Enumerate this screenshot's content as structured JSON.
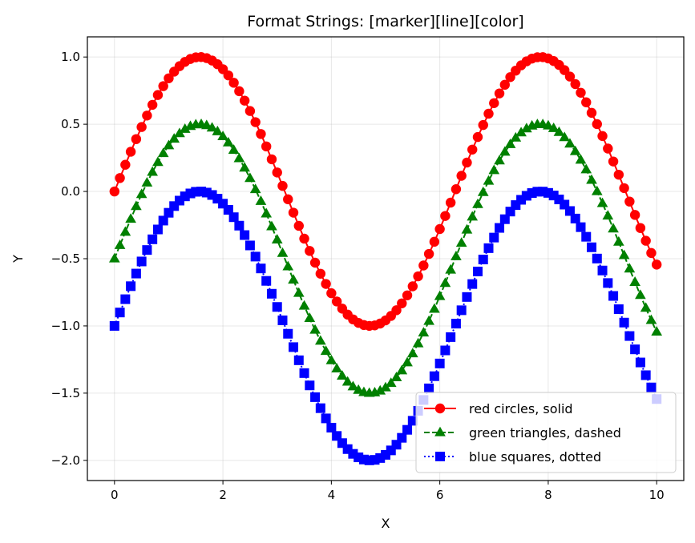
{
  "chart_data": {
    "type": "line",
    "title": "Format Strings: [marker][line][color]",
    "xlabel": "X",
    "ylabel": "Y",
    "xlim": [
      -0.5,
      10.5
    ],
    "ylim": [
      -2.15,
      1.15
    ],
    "xticks": [
      0,
      2,
      4,
      6,
      8,
      10
    ],
    "xtick_labels": [
      "0",
      "2",
      "4",
      "6",
      "8",
      "10"
    ],
    "yticks": [
      -2.0,
      -1.5,
      -1.0,
      -0.5,
      0.0,
      0.5,
      1.0
    ],
    "ytick_labels": [
      "−2.0",
      "−1.5",
      "−1.0",
      "−0.5",
      "0.0",
      "0.5",
      "1.0"
    ],
    "grid": true,
    "legend_position": "lower-right",
    "x": [
      0.0,
      0.1,
      0.2,
      0.3,
      0.4,
      0.5,
      0.6,
      0.7,
      0.8,
      0.9,
      1.0,
      1.1,
      1.2,
      1.3,
      1.4,
      1.5,
      1.6,
      1.7,
      1.8,
      1.9,
      2.0,
      2.1,
      2.2,
      2.3,
      2.4,
      2.5,
      2.6,
      2.7,
      2.8,
      2.9,
      3.0,
      3.1,
      3.2,
      3.3,
      3.4,
      3.5,
      3.6,
      3.7,
      3.8,
      3.9,
      4.0,
      4.1,
      4.2,
      4.3,
      4.4,
      4.5,
      4.6,
      4.7,
      4.8,
      4.9,
      5.0,
      5.1,
      5.2,
      5.3,
      5.4,
      5.5,
      5.6,
      5.7,
      5.8,
      5.9,
      6.0,
      6.1,
      6.2,
      6.3,
      6.4,
      6.5,
      6.6,
      6.7,
      6.8,
      6.9,
      7.0,
      7.1,
      7.2,
      7.3,
      7.4,
      7.5,
      7.6,
      7.7,
      7.8,
      7.9,
      8.0,
      8.1,
      8.2,
      8.3,
      8.4,
      8.5,
      8.6,
      8.7,
      8.8,
      8.9,
      9.0,
      9.1,
      9.2,
      9.3,
      9.4,
      9.5,
      9.6,
      9.7,
      9.8,
      9.9,
      10.0
    ],
    "series": [
      {
        "name": "red circles, solid",
        "color": "#ff0000",
        "marker": "circle",
        "linestyle": "solid",
        "values": [
          0.0,
          0.0998,
          0.1987,
          0.2955,
          0.3894,
          0.4794,
          0.5646,
          0.6442,
          0.7174,
          0.7833,
          0.8415,
          0.8912,
          0.932,
          0.9636,
          0.9854,
          0.9975,
          0.9996,
          0.9917,
          0.9738,
          0.9463,
          0.9093,
          0.8632,
          0.8085,
          0.7457,
          0.6755,
          0.5985,
          0.5155,
          0.4274,
          0.335,
          0.2392,
          0.1411,
          0.0416,
          -0.0584,
          -0.1577,
          -0.2555,
          -0.3508,
          -0.4425,
          -0.5298,
          -0.6119,
          -0.6878,
          -0.7568,
          -0.8183,
          -0.8716,
          -0.9162,
          -0.9516,
          -0.9775,
          -0.9937,
          -0.9999,
          -0.9962,
          -0.9825,
          -0.9589,
          -0.9258,
          -0.8835,
          -0.8323,
          -0.7728,
          -0.7055,
          -0.6313,
          -0.5507,
          -0.4646,
          -0.3739,
          -0.2794,
          -0.1822,
          -0.0831,
          0.0168,
          0.1165,
          0.2151,
          0.3115,
          0.4048,
          0.494,
          0.5784,
          0.657,
          0.729,
          0.7937,
          0.8504,
          0.8987,
          0.938,
          0.9679,
          0.9882,
          0.9985,
          0.9989,
          0.9894,
          0.9699,
          0.9407,
          0.9022,
          0.8546,
          0.7985,
          0.7344,
          0.663,
          0.5849,
          0.501,
          0.4121,
          0.319,
          0.2229,
          0.1245,
          0.0248,
          -0.0752,
          -0.1743,
          -0.2718,
          -0.3665,
          -0.4575,
          -0.544
        ]
      },
      {
        "name": "green triangles, dashed",
        "color": "#008000",
        "marker": "triangle",
        "linestyle": "dashed",
        "values": [
          -0.5,
          -0.4002,
          -0.3013,
          -0.2045,
          -0.1106,
          -0.0206,
          0.0646,
          0.1442,
          0.2174,
          0.2833,
          0.3415,
          0.3912,
          0.432,
          0.4636,
          0.4854,
          0.4975,
          0.4996,
          0.4917,
          0.4738,
          0.4463,
          0.4093,
          0.3632,
          0.3085,
          0.2457,
          0.1755,
          0.0985,
          0.0155,
          -0.0726,
          -0.165,
          -0.2608,
          -0.3589,
          -0.4584,
          -0.5584,
          -0.6577,
          -0.7555,
          -0.8508,
          -0.9425,
          -1.0298,
          -1.1119,
          -1.1878,
          -1.2568,
          -1.3183,
          -1.3716,
          -1.4162,
          -1.4516,
          -1.4775,
          -1.4937,
          -1.4999,
          -1.4962,
          -1.4825,
          -1.4589,
          -1.4258,
          -1.3835,
          -1.3323,
          -1.2728,
          -1.2055,
          -1.1313,
          -1.0507,
          -0.9646,
          -0.8739,
          -0.7794,
          -0.6822,
          -0.5831,
          -0.4832,
          -0.3835,
          -0.2849,
          -0.1885,
          -0.0952,
          -0.006,
          0.0784,
          0.157,
          0.229,
          0.2937,
          0.3504,
          0.3987,
          0.438,
          0.4679,
          0.4882,
          0.4985,
          0.4989,
          0.4894,
          0.4699,
          0.4407,
          0.4022,
          0.3546,
          0.2985,
          0.2344,
          0.163,
          0.0849,
          0.001,
          -0.0879,
          -0.181,
          -0.2771,
          -0.3755,
          -0.4752,
          -0.5752,
          -0.6743,
          -0.7718,
          -0.8665,
          -0.9575,
          -1.044
        ]
      },
      {
        "name": "blue squares, dotted",
        "color": "#0000ff",
        "marker": "square",
        "linestyle": "dotted",
        "values": [
          -1.0,
          -0.9002,
          -0.8013,
          -0.7045,
          -0.6106,
          -0.5206,
          -0.4354,
          -0.3558,
          -0.2826,
          -0.2167,
          -0.1585,
          -0.1088,
          -0.068,
          -0.0364,
          -0.0146,
          -0.0025,
          -0.0004,
          -0.0083,
          -0.0262,
          -0.0537,
          -0.0907,
          -0.1368,
          -0.1915,
          -0.2543,
          -0.3245,
          -0.4015,
          -0.4845,
          -0.5726,
          -0.665,
          -0.7608,
          -0.8589,
          -0.9584,
          -1.0584,
          -1.1577,
          -1.2555,
          -1.3508,
          -1.4425,
          -1.5298,
          -1.6119,
          -1.6878,
          -1.7568,
          -1.8183,
          -1.8716,
          -1.9162,
          -1.9516,
          -1.9775,
          -1.9937,
          -1.9999,
          -1.9962,
          -1.9825,
          -1.9589,
          -1.9258,
          -1.8835,
          -1.8323,
          -1.7728,
          -1.7055,
          -1.6313,
          -1.5507,
          -1.4646,
          -1.3739,
          -1.2794,
          -1.1822,
          -1.0831,
          -0.9832,
          -0.8835,
          -0.7849,
          -0.6885,
          -0.5952,
          -0.506,
          -0.4216,
          -0.343,
          -0.271,
          -0.2063,
          -0.1496,
          -0.1013,
          -0.062,
          -0.0321,
          -0.0118,
          -0.0015,
          -0.0011,
          -0.0106,
          -0.0301,
          -0.0593,
          -0.0978,
          -0.1454,
          -0.2015,
          -0.2656,
          -0.337,
          -0.4151,
          -0.499,
          -0.5879,
          -0.681,
          -0.7771,
          -0.8755,
          -0.9752,
          -1.0752,
          -1.1743,
          -1.2718,
          -1.3665,
          -1.4575,
          -1.544
        ]
      }
    ]
  }
}
